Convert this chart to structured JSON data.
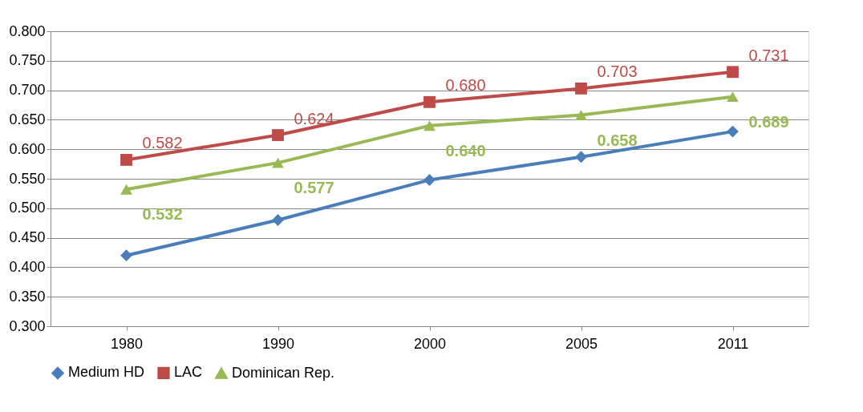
{
  "chart_data": {
    "type": "line",
    "categories": [
      "1980",
      "1990",
      "2000",
      "2005",
      "2011"
    ],
    "series": [
      {
        "name": "Medium HD",
        "color": "#4a7ebb",
        "marker": "diamond",
        "values": [
          0.42,
          0.48,
          0.548,
          0.587,
          0.63
        ]
      },
      {
        "name": "LAC",
        "color": "#be4b48",
        "marker": "square",
        "values": [
          0.582,
          0.624,
          0.68,
          0.703,
          0.731
        ],
        "value_labels": [
          "0.582",
          "0.624",
          "0.680",
          "0.703",
          "0.731"
        ]
      },
      {
        "name": "Dominican Rep.",
        "color": "#98b954",
        "marker": "triangle",
        "values": [
          0.532,
          0.577,
          0.64,
          0.658,
          0.689
        ],
        "value_labels": [
          "0.532",
          "0.577",
          "0.640",
          "0.658",
          "0.689"
        ]
      }
    ],
    "ylim": [
      0.3,
      0.8
    ],
    "yticks": [
      {
        "value": 0.3,
        "label": "0.300"
      },
      {
        "value": 0.35,
        "label": "0.350"
      },
      {
        "value": 0.4,
        "label": "0.400"
      },
      {
        "value": 0.45,
        "label": "0.450"
      },
      {
        "value": 0.5,
        "label": "0.500"
      },
      {
        "value": 0.55,
        "label": "0.550"
      },
      {
        "value": 0.6,
        "label": "0.600"
      },
      {
        "value": 0.65,
        "label": "0.650"
      },
      {
        "value": 0.7,
        "label": "0.700"
      },
      {
        "value": 0.75,
        "label": "0.750"
      },
      {
        "value": 0.8,
        "label": "0.800"
      }
    ],
    "grid": "y",
    "legend": "bottom",
    "line_style": "solid"
  }
}
